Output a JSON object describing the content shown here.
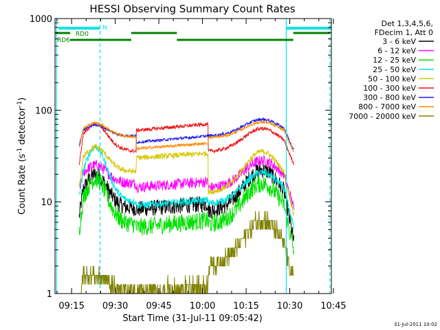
{
  "chart_data": {
    "type": "line",
    "title": "HESSI Observing Summary Count Rates",
    "xlabel": "Start Time (31-Jul-11 09:05:42)",
    "ylabel_main": "Count Rate (s",
    "ylabel_sup1": "-1",
    "ylabel_mid": " detector",
    "ylabel_sup2": "-1",
    "ylabel_end": ")",
    "timestamp": "31-Jul-2011 10:02",
    "y_scale": "log",
    "ylim": [
      1,
      1000
    ],
    "xlim_minutes": [
      9.3,
      104.3
    ],
    "x_tick_labels": [
      "09:15",
      "09:30",
      "09:45",
      "10:00",
      "10:15",
      "10:30",
      "10:45"
    ],
    "x_tick_minutes": [
      15,
      30,
      45,
      60,
      75,
      90,
      105
    ],
    "y_tick_labels": [
      "1",
      "10",
      "100",
      "1000"
    ],
    "y_tick_values": [
      1,
      10,
      100,
      1000
    ],
    "legend_header": [
      "Det 1,3,4,5,6,",
      "FDecim 1, Att 0"
    ],
    "legend_placement": "right",
    "series": [
      {
        "name": "3 - 6 keV",
        "color": "#000000"
      },
      {
        "name": "6 - 12 keV",
        "color": "#ff00ff"
      },
      {
        "name": "12 - 25 keV",
        "color": "#00e000"
      },
      {
        "name": "25 - 50 keV",
        "color": "#00e5e5"
      },
      {
        "name": "50 - 100 keV",
        "color": "#d4c800"
      },
      {
        "name": "100 - 300 keV",
        "color": "#ee1111"
      },
      {
        "name": "300 - 800 keV",
        "color": "#1a1aee"
      },
      {
        "name": "800 - 7000 keV",
        "color": "#ff8800"
      },
      {
        "name": "7000 - 20000 keV",
        "color": "#808000"
      }
    ],
    "annotations": {
      "night_label": "N",
      "rd0_label": "RD0",
      "rd6_label": "RD6",
      "vertical_lines_minutes": [
        9.8,
        24.8,
        88.8,
        103.8
      ]
    }
  }
}
